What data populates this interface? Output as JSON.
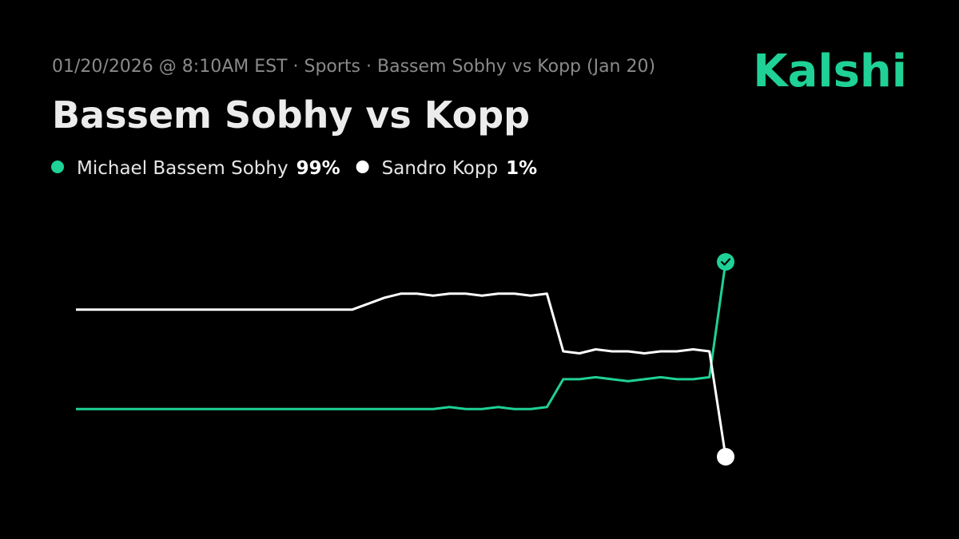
{
  "chart_data": {
    "type": "line",
    "subtitle": "01/20/2026 @ 8:10AM EST · Sports · Bassem Sobhy vs Kopp (Jan 20)",
    "title": "Bassem Sobhy vs Kopp",
    "brand": "Kalshi",
    "categories": [
      null,
      null,
      null,
      null,
      null,
      null,
      null,
      null,
      null,
      null,
      null,
      null,
      null,
      null,
      null,
      null,
      null,
      null,
      null,
      null,
      null,
      null,
      null,
      null,
      null,
      null,
      null,
      null,
      null,
      null,
      null,
      null,
      null,
      null,
      null,
      null,
      null,
      null,
      null,
      null,
      null
    ],
    "ylim": [
      0,
      100
    ],
    "series": [
      {
        "name": "Michael Bassem Sobhy",
        "color": "#1fd196",
        "last_label": "99%",
        "values": [
          25,
          25,
          25,
          25,
          25,
          25,
          25,
          25,
          25,
          25,
          25,
          25,
          25,
          25,
          25,
          25,
          25,
          25,
          25,
          25,
          25,
          25,
          25,
          26,
          25,
          25,
          26,
          25,
          25,
          26,
          40,
          40,
          41,
          40,
          39,
          40,
          41,
          40,
          40,
          41,
          99
        ]
      },
      {
        "name": "Sandro Kopp",
        "color": "#ffffff",
        "last_label": "1%",
        "values": [
          75,
          75,
          75,
          75,
          75,
          75,
          75,
          75,
          75,
          75,
          75,
          75,
          75,
          75,
          75,
          75,
          75,
          75,
          78,
          81,
          83,
          83,
          82,
          83,
          83,
          82,
          83,
          83,
          82,
          83,
          54,
          53,
          55,
          54,
          54,
          53,
          54,
          54,
          55,
          54,
          1
        ]
      }
    ]
  }
}
